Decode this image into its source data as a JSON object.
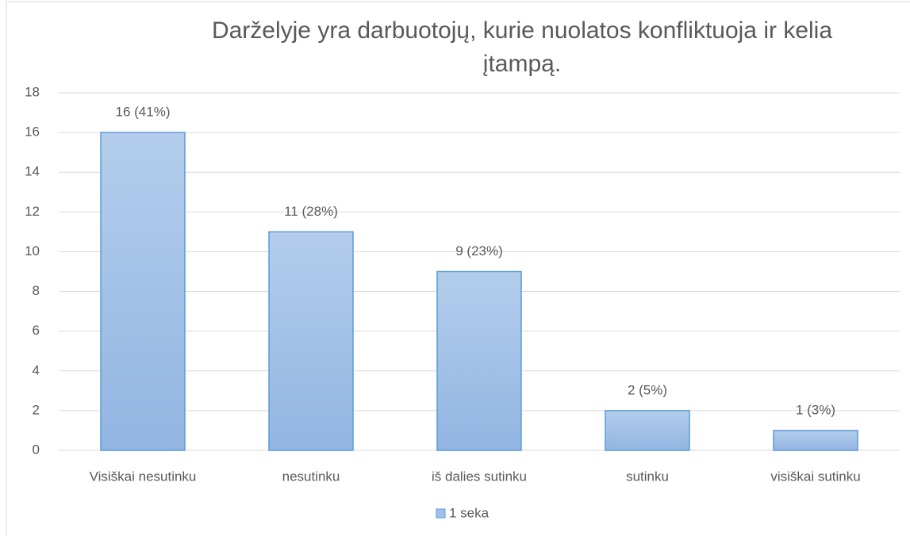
{
  "chart_data": {
    "type": "bar",
    "title": "Darželyje yra darbuotojų, kurie nuolatos konfliktuoja ir kelia įtampą.",
    "categories": [
      "Visiškai nesutinku",
      "nesutinku",
      "iš dalies sutinku",
      "sutinku",
      "visiškai sutinku"
    ],
    "series": [
      {
        "name": "1 seka",
        "color": "#a3c1e8",
        "values": [
          16,
          11,
          9,
          2,
          1
        ],
        "value_labels": [
          "16 (41%)",
          "11 (28%)",
          "9 (23%)",
          "2 (5%)",
          "1 (3%)"
        ]
      }
    ],
    "ylim": [
      0,
      18
    ],
    "yticks": [
      0,
      2,
      4,
      6,
      8,
      10,
      12,
      14,
      16,
      18
    ],
    "grid": true,
    "legend": "bottom"
  }
}
